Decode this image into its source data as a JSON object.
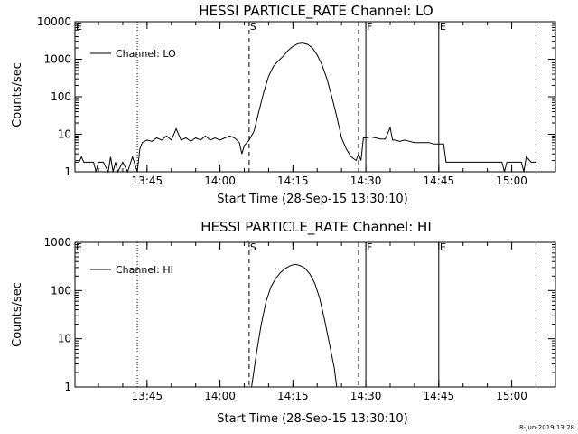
{
  "chart_data": [
    {
      "type": "line",
      "title": "HESSI PARTICLE_RATE Channel: LO",
      "xlabel": "Start Time (28-Sep-15 13:30:10)",
      "ylabel": "Counts/sec",
      "y_scale": "log",
      "xlim": [
        "13:30:10",
        "15:09:00"
      ],
      "ylim": [
        1,
        10000
      ],
      "x_tick_labels": [
        "13:45",
        "14:00",
        "14:15",
        "14:30",
        "14:45",
        "15:00"
      ],
      "y_tick_labels": [
        "1",
        "10",
        "100",
        "1000",
        "10000"
      ],
      "legend": {
        "entries": [
          "Channel: LO"
        ],
        "placement": "top-left"
      },
      "markers": [
        {
          "label": "E",
          "time": "13:30:10",
          "style": "dotted"
        },
        {
          "label": "S",
          "time": "14:06:00",
          "style": "dashed"
        },
        {
          "label": "F",
          "time": "14:30:00",
          "style": "solid"
        },
        {
          "label": "E",
          "time": "14:45:00",
          "style": "solid"
        }
      ],
      "guides": [
        {
          "time": "13:43:00",
          "style": "dotted"
        },
        {
          "time": "14:28:30",
          "style": "dashed"
        },
        {
          "time": "15:05:00",
          "style": "dotted"
        }
      ],
      "series": [
        {
          "name": "Channel: LO",
          "points": [
            [
              "13:30:10",
              1.8
            ],
            [
              "13:31:00",
              1.8
            ],
            [
              "13:31:30",
              2.5
            ],
            [
              "13:32:00",
              1.8
            ],
            [
              "13:33:00",
              1.8
            ],
            [
              "13:34:00",
              1.8
            ],
            [
              "13:34:30",
              1.0
            ],
            [
              "13:35:00",
              1.8
            ],
            [
              "13:36:00",
              1.8
            ],
            [
              "13:37:00",
              1.0
            ],
            [
              "13:37:30",
              2.5
            ],
            [
              "13:38:00",
              1.0
            ],
            [
              "13:38:30",
              1.8
            ],
            [
              "13:39:00",
              1.0
            ],
            [
              "13:40:00",
              1.8
            ],
            [
              "13:41:00",
              1.0
            ],
            [
              "13:42:00",
              2.5
            ],
            [
              "13:43:00",
              1.0
            ],
            [
              "13:43:30",
              4.0
            ],
            [
              "13:44:00",
              6.0
            ],
            [
              "13:45:00",
              7.0
            ],
            [
              "13:46:00",
              6.5
            ],
            [
              "13:47:00",
              8.0
            ],
            [
              "13:48:00",
              7.0
            ],
            [
              "13:49:00",
              9.0
            ],
            [
              "13:50:00",
              7.0
            ],
            [
              "13:51:00",
              14.0
            ],
            [
              "13:52:00",
              7.0
            ],
            [
              "13:53:00",
              8.0
            ],
            [
              "13:54:00",
              6.5
            ],
            [
              "13:55:00",
              8.0
            ],
            [
              "13:56:00",
              7.0
            ],
            [
              "13:57:00",
              9.0
            ],
            [
              "13:58:00",
              7.0
            ],
            [
              "13:59:00",
              8.0
            ],
            [
              "14:00:00",
              7.0
            ],
            [
              "14:01:00",
              8.0
            ],
            [
              "14:02:00",
              9.0
            ],
            [
              "14:03:00",
              8.0
            ],
            [
              "14:04:00",
              6.0
            ],
            [
              "14:04:30",
              3.0
            ],
            [
              "14:05:00",
              5.0
            ],
            [
              "14:06:00",
              7.0
            ],
            [
              "14:07:00",
              12.0
            ],
            [
              "14:08:00",
              40.0
            ],
            [
              "14:09:00",
              130.0
            ],
            [
              "14:10:00",
              350.0
            ],
            [
              "14:11:00",
              650.0
            ],
            [
              "14:12:00",
              900.0
            ],
            [
              "14:13:00",
              1200.0
            ],
            [
              "14:14:00",
              1700.0
            ],
            [
              "14:15:00",
              2200.0
            ],
            [
              "14:16:00",
              2600.0
            ],
            [
              "14:17:00",
              2700.0
            ],
            [
              "14:18:00",
              2500.0
            ],
            [
              "14:19:00",
              2000.0
            ],
            [
              "14:20:00",
              1300.0
            ],
            [
              "14:21:00",
              700.0
            ],
            [
              "14:22:00",
              300.0
            ],
            [
              "14:23:00",
              100.0
            ],
            [
              "14:24:00",
              30.0
            ],
            [
              "14:25:00",
              8.0
            ],
            [
              "14:26:00",
              4.0
            ],
            [
              "14:27:00",
              2.5
            ],
            [
              "14:28:00",
              2.0
            ],
            [
              "14:28:30",
              3.0
            ],
            [
              "14:29:00",
              2.0
            ],
            [
              "14:29:30",
              8.0
            ],
            [
              "14:30:00",
              8.0
            ],
            [
              "14:31:00",
              8.5
            ],
            [
              "14:32:00",
              8.0
            ],
            [
              "14:33:00",
              7.5
            ],
            [
              "14:34:00",
              7.5
            ],
            [
              "14:35:00",
              15.0
            ],
            [
              "14:35:30",
              7.0
            ],
            [
              "14:36:00",
              7.0
            ],
            [
              "14:37:00",
              6.5
            ],
            [
              "14:38:00",
              7.0
            ],
            [
              "14:39:00",
              6.5
            ],
            [
              "14:40:00",
              6.0
            ],
            [
              "14:41:00",
              6.0
            ],
            [
              "14:42:00",
              6.0
            ],
            [
              "14:43:00",
              6.0
            ],
            [
              "14:44:00",
              5.5
            ],
            [
              "14:45:00",
              5.5
            ],
            [
              "14:45:30",
              5.5
            ],
            [
              "14:46:00",
              5.5
            ],
            [
              "14:46:30",
              1.8
            ],
            [
              "14:47:00",
              1.8
            ],
            [
              "14:48:00",
              1.8
            ],
            [
              "14:49:00",
              1.8
            ],
            [
              "14:50:00",
              1.8
            ],
            [
              "14:51:00",
              1.8
            ],
            [
              "14:52:00",
              1.8
            ],
            [
              "14:53:00",
              1.8
            ],
            [
              "14:54:00",
              1.8
            ],
            [
              "14:55:00",
              1.8
            ],
            [
              "14:56:00",
              1.8
            ],
            [
              "14:57:00",
              1.8
            ],
            [
              "14:58:00",
              1.8
            ],
            [
              "14:58:30",
              1.0
            ],
            [
              "14:59:00",
              1.8
            ],
            [
              "15:00:00",
              1.8
            ],
            [
              "15:01:00",
              1.8
            ],
            [
              "15:02:00",
              1.8
            ],
            [
              "15:02:30",
              1.0
            ],
            [
              "15:03:00",
              2.5
            ],
            [
              "15:04:00",
              1.8
            ],
            [
              "15:05:00",
              1.8
            ]
          ]
        }
      ]
    },
    {
      "type": "line",
      "title": "HESSI PARTICLE_RATE Channel: HI",
      "xlabel": "Start Time (28-Sep-15 13:30:10)",
      "ylabel": "Counts/sec",
      "y_scale": "log",
      "xlim": [
        "13:30:10",
        "15:09:00"
      ],
      "ylim": [
        1,
        1000
      ],
      "x_tick_labels": [
        "13:45",
        "14:00",
        "14:15",
        "14:30",
        "14:45",
        "15:00"
      ],
      "y_tick_labels": [
        "1",
        "10",
        "100",
        "1000"
      ],
      "legend": {
        "entries": [
          "Channel: HI"
        ],
        "placement": "top-left"
      },
      "markers": [
        {
          "label": "E",
          "time": "13:30:10",
          "style": "dotted"
        },
        {
          "label": "S",
          "time": "14:06:00",
          "style": "dashed"
        },
        {
          "label": "F",
          "time": "14:30:00",
          "style": "solid"
        },
        {
          "label": "E",
          "time": "14:45:00",
          "style": "solid"
        }
      ],
      "guides": [
        {
          "time": "13:43:00",
          "style": "dotted"
        },
        {
          "time": "14:28:30",
          "style": "dashed"
        },
        {
          "time": "15:05:00",
          "style": "dotted"
        }
      ],
      "series": [
        {
          "name": "Channel: HI",
          "points": [
            [
              "14:06:30",
              1.0
            ],
            [
              "14:07:30",
              5.0
            ],
            [
              "14:08:30",
              20.0
            ],
            [
              "14:09:30",
              60.0
            ],
            [
              "14:10:30",
              120.0
            ],
            [
              "14:11:30",
              180.0
            ],
            [
              "14:12:30",
              240.0
            ],
            [
              "14:13:30",
              290.0
            ],
            [
              "14:14:30",
              330.0
            ],
            [
              "14:15:30",
              350.0
            ],
            [
              "14:16:30",
              330.0
            ],
            [
              "14:17:30",
              290.0
            ],
            [
              "14:18:30",
              220.0
            ],
            [
              "14:19:30",
              140.0
            ],
            [
              "14:20:30",
              70.0
            ],
            [
              "14:21:30",
              25.0
            ],
            [
              "14:22:30",
              8.0
            ],
            [
              "14:23:30",
              2.5
            ],
            [
              "14:24:00",
              1.0
            ]
          ]
        }
      ]
    }
  ],
  "footer": {
    "date_stamp": "8-Jun-2019 13:28"
  }
}
